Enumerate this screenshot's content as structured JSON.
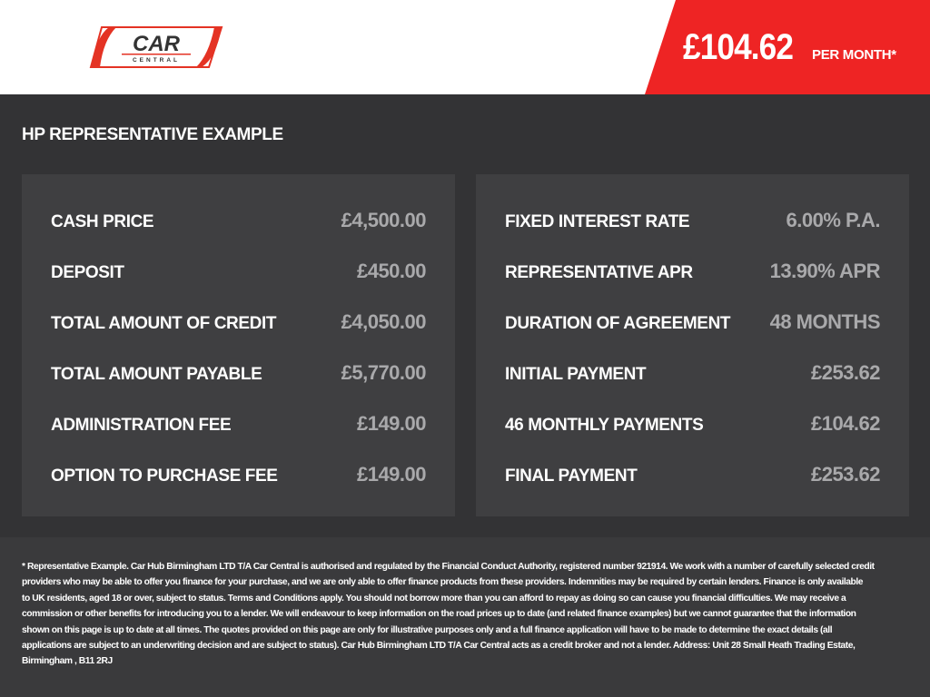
{
  "header": {
    "logo_text": "CAR CENTRAL",
    "price": "£104.62",
    "per_month": "PER MONTH*",
    "accent": "#ee2424"
  },
  "main": {
    "heading": "HP REPRESENTATIVE EXAMPLE",
    "left": [
      {
        "label": "CASH PRICE",
        "value": "£4,500.00"
      },
      {
        "label": "DEPOSIT",
        "value": "£450.00"
      },
      {
        "label": "TOTAL AMOUNT OF CREDIT",
        "value": "£4,050.00"
      },
      {
        "label": "TOTAL AMOUNT PAYABLE",
        "value": "£5,770.00"
      },
      {
        "label": "ADMINISTRATION FEE",
        "value": "£149.00"
      },
      {
        "label": "OPTION TO PURCHASE FEE",
        "value": "£149.00"
      }
    ],
    "right": [
      {
        "label": "FIXED INTEREST RATE",
        "value": "6.00% P.A."
      },
      {
        "label": "REPRESENTATIVE APR",
        "value": "13.90% APR"
      },
      {
        "label": "DURATION OF AGREEMENT",
        "value": "48 MONTHS"
      },
      {
        "label": "INITIAL PAYMENT",
        "value": "£253.62"
      },
      {
        "label": "46 MONTHLY PAYMENTS",
        "value": "£104.62"
      },
      {
        "label": "FINAL PAYMENT",
        "value": "£253.62"
      }
    ]
  },
  "disclaimer": [
    "* Representative Example. Car Hub Birmingham LTD T/A Car Central is authorised and regulated by the Financial Conduct Authority, registered number 921914. We work with a number of carefully selected credit",
    "providers who may be able to offer you finance for your purchase, and we are only able to offer finance products from these providers. Indemnities may be required by certain lenders. Finance is only available",
    "to UK residents, aged 18 or over, subject to status. Terms and Conditions apply. You should not borrow more than you can afford to repay as doing so can cause you financial difficulties. We may receive a",
    "commission or other benefits for introducing you to a lender. We will endeavour to keep information on the road prices up to date (and related finance examples) but we cannot guarantee that the information",
    "shown on this page is up to date at all times. The quotes provided on this page are only for illustrative purposes only and a full finance application will have to be made to determine the exact details (all",
    "applications are subject to an underwriting decision and are subject to status). Car Hub Birmingham LTD T/A Car Central acts as a credit broker and not a lender. Address: Unit 28 Small Heath Trading Estate,",
    "Birmingham , B11 2RJ"
  ]
}
